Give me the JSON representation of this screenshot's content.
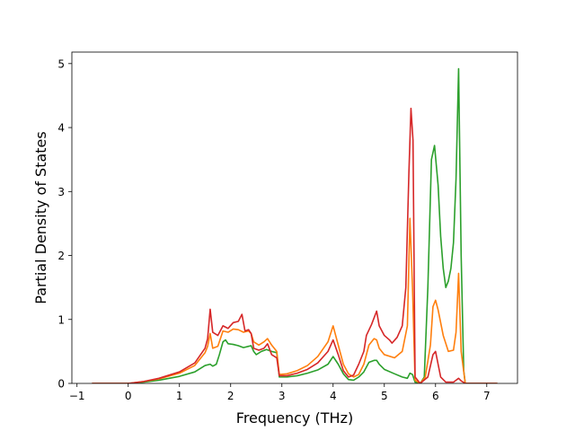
{
  "chart_data": {
    "type": "line",
    "title": "",
    "xlabel": "Frequency (THz)",
    "ylabel": "Partial Density of States",
    "xlim": [
      -1.1,
      7.6
    ],
    "ylim": [
      0,
      5.18
    ],
    "xticks": [
      -1,
      0,
      1,
      2,
      3,
      4,
      5,
      6,
      7
    ],
    "yticks": [
      0,
      1,
      2,
      3,
      4,
      5
    ],
    "grid": false,
    "legend": "none",
    "series": [
      {
        "color": "#2ca02c",
        "points": [
          [
            -0.7,
            0
          ],
          [
            0,
            0
          ],
          [
            0.3,
            0.02
          ],
          [
            0.6,
            0.05
          ],
          [
            1.0,
            0.11
          ],
          [
            1.3,
            0.18
          ],
          [
            1.5,
            0.28
          ],
          [
            1.6,
            0.3
          ],
          [
            1.65,
            0.27
          ],
          [
            1.72,
            0.3
          ],
          [
            1.78,
            0.45
          ],
          [
            1.85,
            0.65
          ],
          [
            1.9,
            0.68
          ],
          [
            1.95,
            0.62
          ],
          [
            2.05,
            0.61
          ],
          [
            2.15,
            0.59
          ],
          [
            2.25,
            0.56
          ],
          [
            2.35,
            0.58
          ],
          [
            2.4,
            0.59
          ],
          [
            2.45,
            0.5
          ],
          [
            2.5,
            0.45
          ],
          [
            2.6,
            0.5
          ],
          [
            2.7,
            0.53
          ],
          [
            2.8,
            0.5
          ],
          [
            2.9,
            0.48
          ],
          [
            2.95,
            0.1
          ],
          [
            3.1,
            0.1
          ],
          [
            3.3,
            0.12
          ],
          [
            3.5,
            0.16
          ],
          [
            3.7,
            0.21
          ],
          [
            3.9,
            0.3
          ],
          [
            4.0,
            0.42
          ],
          [
            4.1,
            0.3
          ],
          [
            4.2,
            0.15
          ],
          [
            4.3,
            0.06
          ],
          [
            4.4,
            0.05
          ],
          [
            4.5,
            0.1
          ],
          [
            4.6,
            0.18
          ],
          [
            4.7,
            0.33
          ],
          [
            4.8,
            0.36
          ],
          [
            4.85,
            0.36
          ],
          [
            4.9,
            0.3
          ],
          [
            5.0,
            0.22
          ],
          [
            5.2,
            0.15
          ],
          [
            5.35,
            0.1
          ],
          [
            5.45,
            0.08
          ],
          [
            5.5,
            0.16
          ],
          [
            5.55,
            0.14
          ],
          [
            5.6,
            0.02
          ],
          [
            5.7,
            0
          ],
          [
            5.78,
            0.1
          ],
          [
            5.85,
            1.5
          ],
          [
            5.92,
            3.5
          ],
          [
            5.98,
            3.72
          ],
          [
            6.05,
            3.1
          ],
          [
            6.1,
            2.3
          ],
          [
            6.15,
            1.8
          ],
          [
            6.2,
            1.5
          ],
          [
            6.25,
            1.6
          ],
          [
            6.3,
            1.8
          ],
          [
            6.35,
            2.2
          ],
          [
            6.4,
            3.2
          ],
          [
            6.45,
            4.92
          ],
          [
            6.5,
            2.0
          ],
          [
            6.55,
            0.2
          ],
          [
            6.58,
            0
          ],
          [
            7.2,
            0
          ]
        ]
      },
      {
        "color": "#ff7f0e",
        "points": [
          [
            -0.7,
            0
          ],
          [
            0,
            0
          ],
          [
            0.3,
            0.03
          ],
          [
            0.6,
            0.07
          ],
          [
            1.0,
            0.16
          ],
          [
            1.3,
            0.28
          ],
          [
            1.5,
            0.48
          ],
          [
            1.55,
            0.58
          ],
          [
            1.6,
            0.78
          ],
          [
            1.65,
            0.55
          ],
          [
            1.75,
            0.58
          ],
          [
            1.85,
            0.82
          ],
          [
            1.95,
            0.8
          ],
          [
            2.05,
            0.85
          ],
          [
            2.15,
            0.84
          ],
          [
            2.25,
            0.8
          ],
          [
            2.35,
            0.82
          ],
          [
            2.4,
            0.78
          ],
          [
            2.45,
            0.65
          ],
          [
            2.55,
            0.6
          ],
          [
            2.65,
            0.65
          ],
          [
            2.72,
            0.7
          ],
          [
            2.8,
            0.6
          ],
          [
            2.9,
            0.5
          ],
          [
            2.95,
            0.14
          ],
          [
            3.1,
            0.15
          ],
          [
            3.3,
            0.2
          ],
          [
            3.5,
            0.28
          ],
          [
            3.7,
            0.42
          ],
          [
            3.9,
            0.65
          ],
          [
            4.0,
            0.9
          ],
          [
            4.1,
            0.6
          ],
          [
            4.2,
            0.3
          ],
          [
            4.3,
            0.15
          ],
          [
            4.4,
            0.1
          ],
          [
            4.5,
            0.14
          ],
          [
            4.6,
            0.3
          ],
          [
            4.7,
            0.6
          ],
          [
            4.8,
            0.7
          ],
          [
            4.85,
            0.68
          ],
          [
            4.9,
            0.55
          ],
          [
            5.0,
            0.45
          ],
          [
            5.2,
            0.4
          ],
          [
            5.35,
            0.5
          ],
          [
            5.45,
            0.9
          ],
          [
            5.5,
            2.58
          ],
          [
            5.55,
            1.5
          ],
          [
            5.6,
            0.05
          ],
          [
            5.7,
            0
          ],
          [
            5.8,
            0.1
          ],
          [
            5.9,
            0.6
          ],
          [
            5.95,
            1.2
          ],
          [
            6.0,
            1.3
          ],
          [
            6.05,
            1.15
          ],
          [
            6.15,
            0.75
          ],
          [
            6.25,
            0.5
          ],
          [
            6.35,
            0.52
          ],
          [
            6.4,
            0.8
          ],
          [
            6.45,
            1.72
          ],
          [
            6.5,
            0.5
          ],
          [
            6.58,
            0
          ],
          [
            7.2,
            0
          ]
        ]
      },
      {
        "color": "#d62728",
        "points": [
          [
            -0.7,
            0
          ],
          [
            0,
            0
          ],
          [
            0.3,
            0.03
          ],
          [
            0.6,
            0.08
          ],
          [
            1.0,
            0.18
          ],
          [
            1.3,
            0.32
          ],
          [
            1.5,
            0.55
          ],
          [
            1.55,
            0.7
          ],
          [
            1.6,
            1.16
          ],
          [
            1.65,
            0.8
          ],
          [
            1.75,
            0.75
          ],
          [
            1.85,
            0.9
          ],
          [
            1.95,
            0.86
          ],
          [
            2.05,
            0.95
          ],
          [
            2.15,
            0.97
          ],
          [
            2.22,
            1.08
          ],
          [
            2.28,
            0.82
          ],
          [
            2.35,
            0.84
          ],
          [
            2.4,
            0.78
          ],
          [
            2.45,
            0.55
          ],
          [
            2.55,
            0.52
          ],
          [
            2.65,
            0.55
          ],
          [
            2.72,
            0.62
          ],
          [
            2.8,
            0.45
          ],
          [
            2.9,
            0.4
          ],
          [
            2.95,
            0.12
          ],
          [
            3.1,
            0.12
          ],
          [
            3.3,
            0.16
          ],
          [
            3.5,
            0.22
          ],
          [
            3.7,
            0.32
          ],
          [
            3.9,
            0.5
          ],
          [
            4.0,
            0.68
          ],
          [
            4.1,
            0.45
          ],
          [
            4.2,
            0.2
          ],
          [
            4.3,
            0.1
          ],
          [
            4.4,
            0.13
          ],
          [
            4.5,
            0.3
          ],
          [
            4.6,
            0.5
          ],
          [
            4.65,
            0.75
          ],
          [
            4.75,
            0.92
          ],
          [
            4.85,
            1.13
          ],
          [
            4.9,
            0.9
          ],
          [
            5.0,
            0.75
          ],
          [
            5.1,
            0.68
          ],
          [
            5.15,
            0.63
          ],
          [
            5.25,
            0.72
          ],
          [
            5.35,
            0.9
          ],
          [
            5.42,
            1.5
          ],
          [
            5.48,
            3.3
          ],
          [
            5.52,
            4.3
          ],
          [
            5.56,
            3.8
          ],
          [
            5.6,
            0.1
          ],
          [
            5.7,
            0
          ],
          [
            5.85,
            0.1
          ],
          [
            5.95,
            0.45
          ],
          [
            6.0,
            0.5
          ],
          [
            6.05,
            0.3
          ],
          [
            6.1,
            0.1
          ],
          [
            6.2,
            0.02
          ],
          [
            6.35,
            0.02
          ],
          [
            6.45,
            0.08
          ],
          [
            6.5,
            0.04
          ],
          [
            6.58,
            0
          ],
          [
            7.2,
            0
          ]
        ]
      }
    ]
  }
}
